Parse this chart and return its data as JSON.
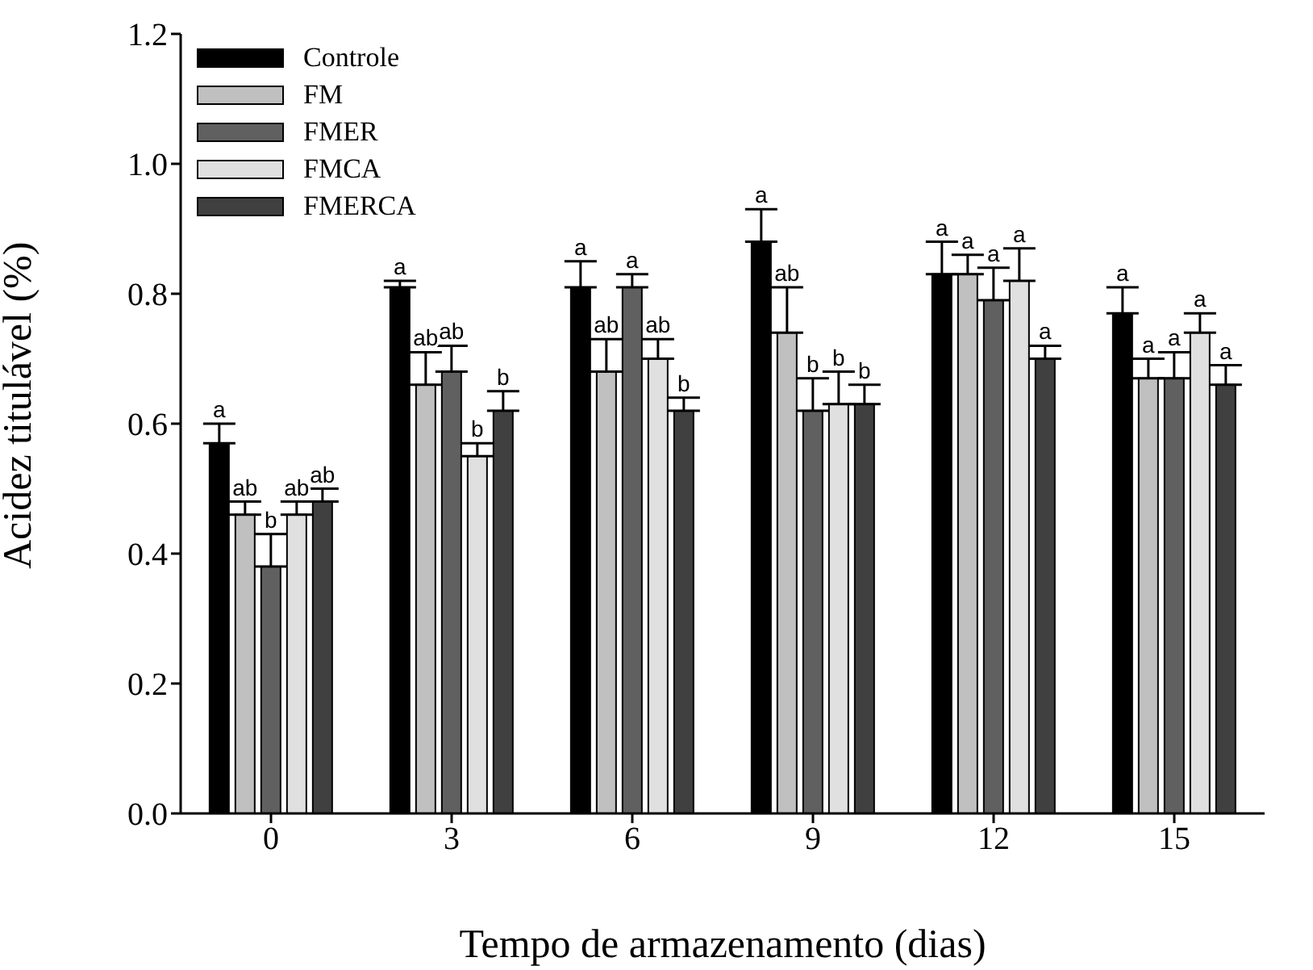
{
  "chart_data": {
    "type": "bar",
    "xlabel": "Tempo de armazenamento (dias)",
    "ylabel": "Acidez titulável (%)",
    "categories": [
      "0",
      "3",
      "6",
      "9",
      "12",
      "15"
    ],
    "series": [
      {
        "name": "Controle",
        "color": "#000000",
        "values": [
          0.57,
          0.81,
          0.81,
          0.88,
          0.83,
          0.77
        ],
        "errors": [
          0.03,
          0.01,
          0.04,
          0.05,
          0.05,
          0.04
        ]
      },
      {
        "name": "FM",
        "color": "#c0c0c0",
        "values": [
          0.46,
          0.66,
          0.68,
          0.74,
          0.83,
          0.67
        ],
        "errors": [
          0.02,
          0.05,
          0.05,
          0.07,
          0.03,
          0.03
        ]
      },
      {
        "name": "FMER",
        "color": "#606060",
        "values": [
          0.38,
          0.68,
          0.81,
          0.62,
          0.79,
          0.67
        ],
        "errors": [
          0.05,
          0.04,
          0.02,
          0.05,
          0.05,
          0.04
        ]
      },
      {
        "name": "FMCA",
        "color": "#e0e0e0",
        "values": [
          0.46,
          0.55,
          0.7,
          0.63,
          0.82,
          0.74
        ],
        "errors": [
          0.02,
          0.02,
          0.03,
          0.05,
          0.05,
          0.03
        ]
      },
      {
        "name": "FMERCA",
        "color": "#404040",
        "values": [
          0.48,
          0.62,
          0.62,
          0.63,
          0.7,
          0.66
        ],
        "errors": [
          0.02,
          0.03,
          0.02,
          0.03,
          0.02,
          0.03
        ]
      }
    ],
    "ylim": [
      0,
      1.2
    ],
    "yticks": [
      {
        "value": 0,
        "label": "0.0"
      },
      {
        "value": 0.2,
        "label": "0.2"
      },
      {
        "value": 0.4,
        "label": "0.4"
      },
      {
        "value": 0.6,
        "label": "0.6"
      },
      {
        "value": 0.8,
        "label": "0.8"
      },
      {
        "value": 1.0,
        "label": "1.0"
      },
      {
        "value": 1.2,
        "label": "1.2"
      }
    ],
    "legend": "top left",
    "grid": false,
    "annotations": [
      "a",
      "a",
      "a",
      "a",
      "a",
      "a",
      "ab",
      "ab",
      "ab",
      "ab",
      "a",
      "a",
      "b",
      "ab",
      "a",
      "b",
      "a",
      "a",
      "ab",
      "b",
      "ab",
      "b",
      "a",
      "a",
      "ab",
      "b",
      "b",
      "b",
      "a",
      "a"
    ]
  }
}
